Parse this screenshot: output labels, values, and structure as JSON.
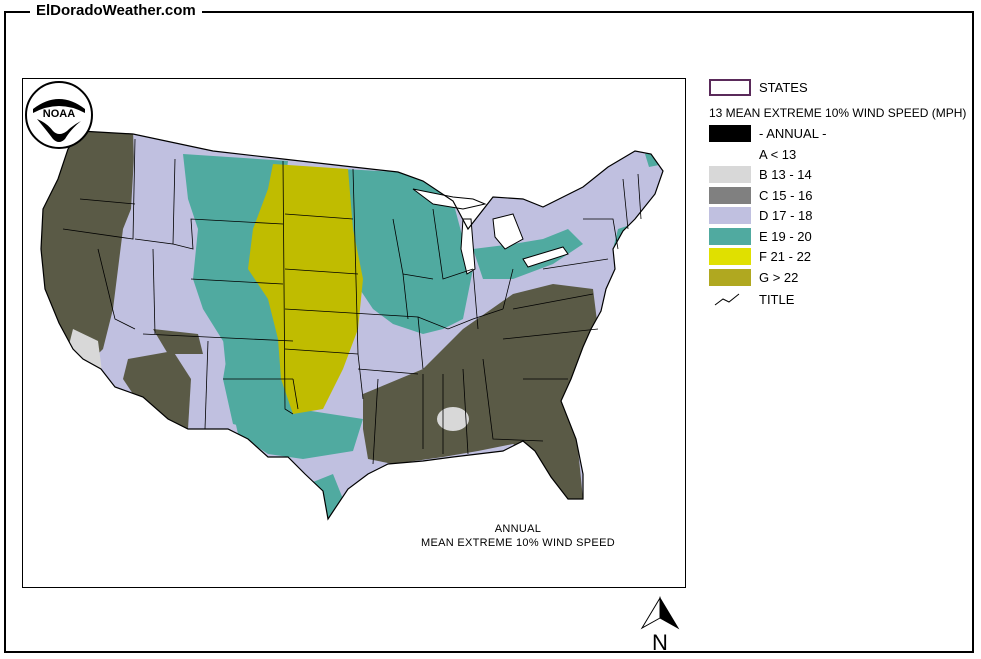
{
  "site_title": "ElDoradoWeather.com",
  "map_caption": {
    "line1": "ANNUAL",
    "line2": "MEAN EXTREME 10% WIND SPEED"
  },
  "noaa_logo_text": "NOAA",
  "legend": {
    "states_label": "STATES",
    "layer_title": "13 MEAN EXTREME 10% WIND SPEED (MPH)",
    "annual_label": "- ANNUAL -",
    "items": [
      {
        "label": "A < 13",
        "color": "#ffffff"
      },
      {
        "label": "B 13 - 14",
        "color": "#d8d8d8"
      },
      {
        "label": "C 15 - 16",
        "color": "#808080"
      },
      {
        "label": "D 17 - 18",
        "color": "#c0c0e0"
      },
      {
        "label": "E 19 - 20",
        "color": "#50aaa0"
      },
      {
        "label": "F 21 - 22",
        "color": "#e0e000"
      },
      {
        "label": "G > 22",
        "color": "#b0a820"
      }
    ],
    "title_label": "TITLE"
  },
  "zone_colors": {
    "dark_olive": "#5a5a46",
    "lavender": "#c0c0e0",
    "teal": "#50aaa0",
    "olive_yellow": "#c0bc00",
    "light_gray": "#d8d8d8",
    "water": "#ffffff"
  },
  "north_arrow_label": "N"
}
